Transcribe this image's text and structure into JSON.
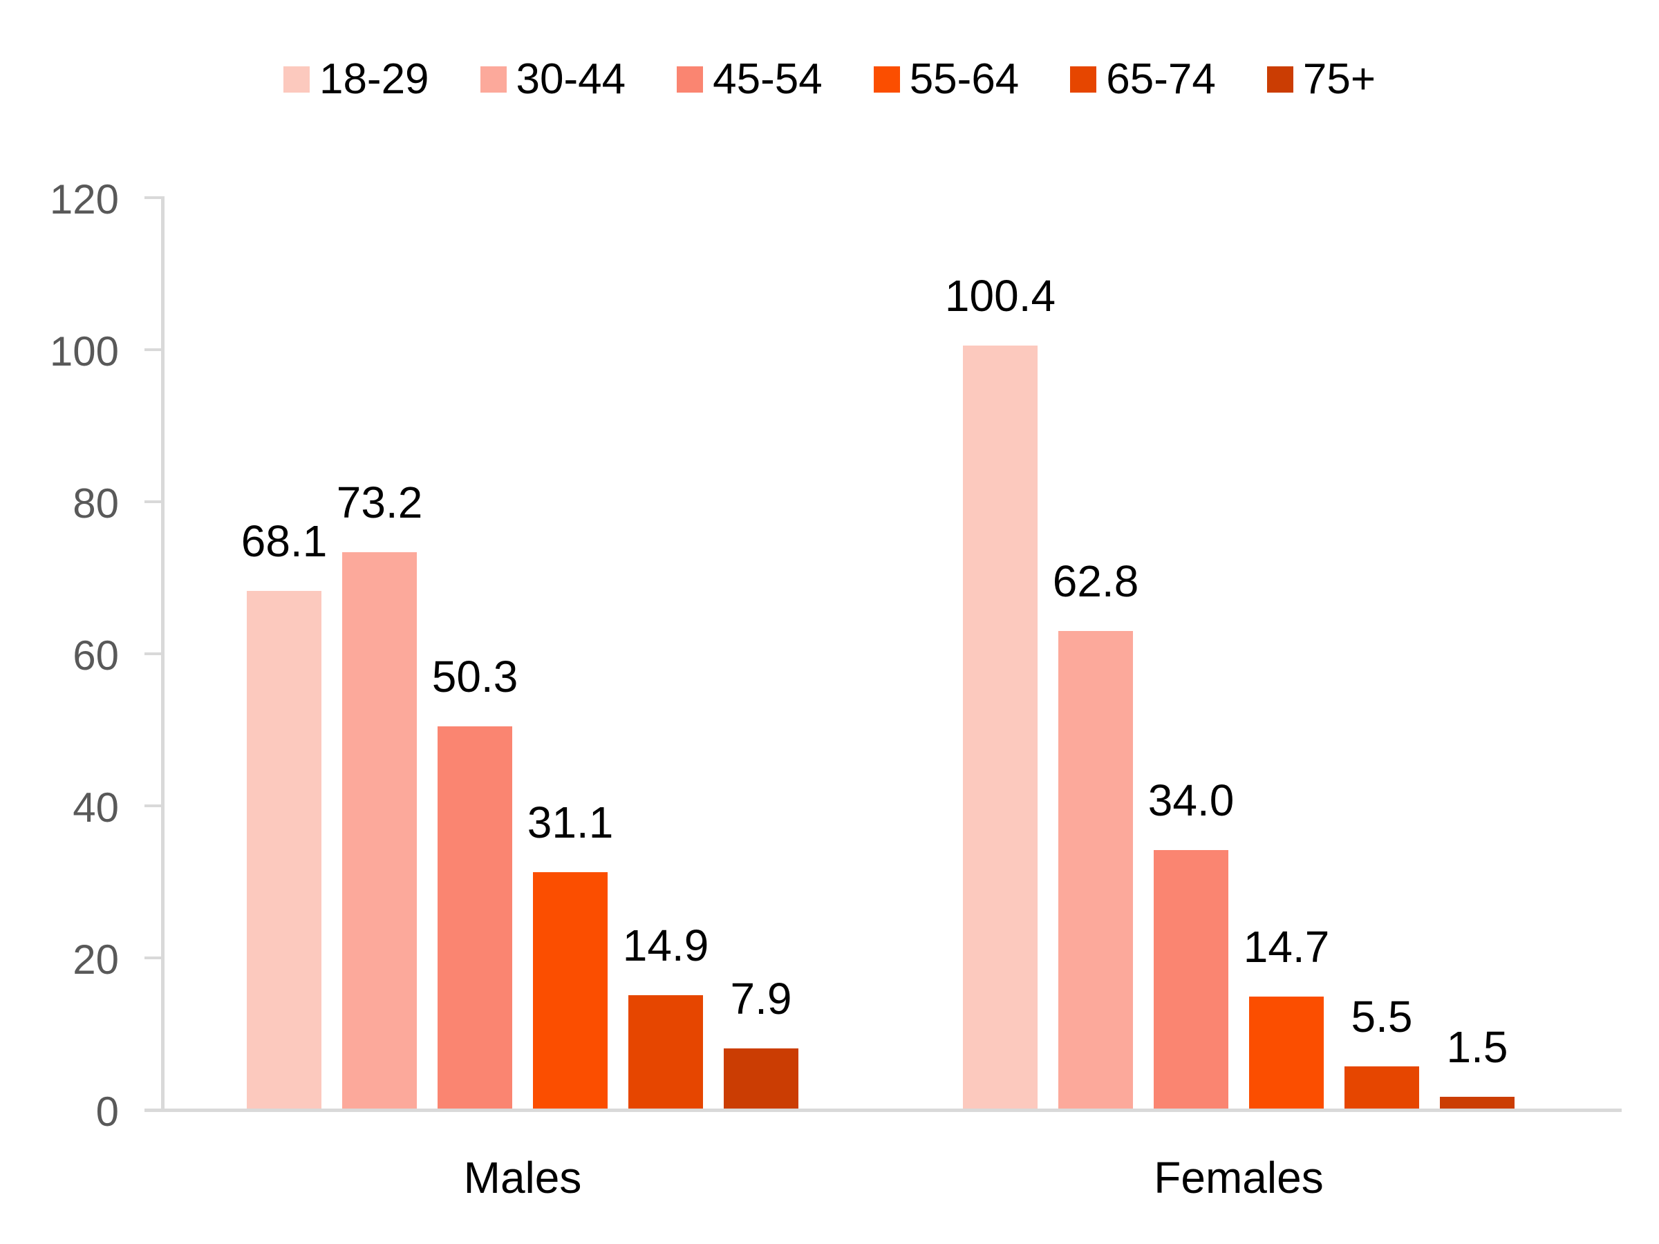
{
  "chart_data": {
    "type": "bar",
    "categories": [
      "Males",
      "Females"
    ],
    "series": [
      {
        "name": "18-29",
        "color": "#FCC9BE",
        "values": [
          68.1,
          100.4
        ],
        "labels": [
          "68.1",
          "100.4"
        ]
      },
      {
        "name": "30-44",
        "color": "#FCA99B",
        "values": [
          73.2,
          62.8
        ],
        "labels": [
          "73.2",
          "62.8"
        ]
      },
      {
        "name": "45-54",
        "color": "#FA8571",
        "values": [
          50.3,
          34.0
        ],
        "labels": [
          "50.3",
          "34.0"
        ]
      },
      {
        "name": "55-64",
        "color": "#FB4E00",
        "values": [
          31.1,
          14.7
        ],
        "labels": [
          "31.1",
          "14.7"
        ]
      },
      {
        "name": "65-74",
        "color": "#E64600",
        "values": [
          14.9,
          5.5
        ],
        "labels": [
          "14.9",
          "5.5"
        ]
      },
      {
        "name": "75+",
        "color": "#CB3D03",
        "values": [
          7.9,
          1.5
        ],
        "labels": [
          "7.9",
          "1.5"
        ]
      }
    ],
    "title": "",
    "xlabel": "",
    "ylabel": "",
    "ylim": [
      0,
      120
    ],
    "yticks": [
      0,
      20,
      40,
      60,
      80,
      100,
      120
    ],
    "grid": false,
    "legend_position": "top",
    "value_labels_shown": true,
    "colors": {
      "axis": "#d9d9d9",
      "tick_label": "#595959",
      "value_label": "#000000",
      "category_label": "#000000",
      "background": "#ffffff"
    }
  }
}
